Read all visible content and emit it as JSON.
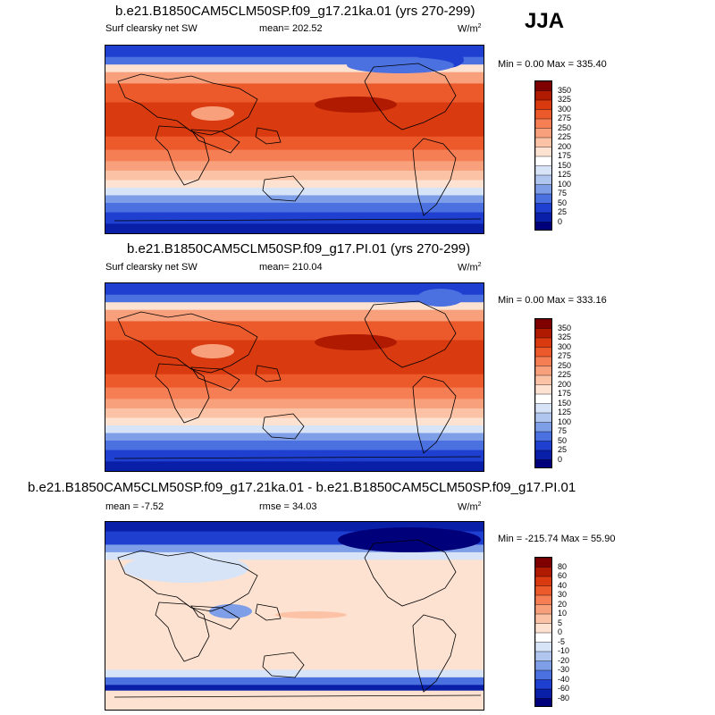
{
  "season": "JJA",
  "units_main": "W/m",
  "units_sup": "2",
  "panels": [
    {
      "title": "b.e21.B1850CAM5CLM50SP.f09_g17.21ka.01 (yrs 270-299)",
      "left_label": "Surf clearsky net SW",
      "center_label": "mean= 202.52",
      "minmax": "Min =   0.00 Max = 335.40",
      "type": "absolute"
    },
    {
      "title": "b.e21.B1850CAM5CLM50SP.f09_g17.PI.01 (yrs 270-299)",
      "left_label": "Surf clearsky net SW",
      "center_label": "mean= 210.04",
      "minmax": "Min =   0.00 Max = 333.16",
      "type": "absolute"
    },
    {
      "title": "b.e21.B1850CAM5CLM50SP.f09_g17.21ka.01 - b.e21.B1850CAM5CLM50SP.f09_g17.PI.01",
      "left_label": "mean =  -7.52",
      "center_label": "rmse =  34.03",
      "minmax": "Min = -215.74 Max =  55.90",
      "type": "difference"
    }
  ],
  "colorbar_abs": {
    "labels": [
      "350",
      "325",
      "300",
      "275",
      "250",
      "225",
      "200",
      "175",
      "150",
      "125",
      "100",
      "75",
      "50",
      "25",
      "0"
    ],
    "colors": [
      "#7f0000",
      "#b01a00",
      "#d93a0f",
      "#ec5a2c",
      "#f57e54",
      "#f8a07c",
      "#fbc2a6",
      "#fde2d2",
      "#ffffff",
      "#d7e3f7",
      "#b0c6ef",
      "#7f9ee8",
      "#4b70e0",
      "#1f3fd0",
      "#0a1fa8",
      "#00007a"
    ]
  },
  "colorbar_diff": {
    "labels": [
      "80",
      "60",
      "40",
      "30",
      "20",
      "10",
      "5",
      "0",
      "-5",
      "-10",
      "-20",
      "-30",
      "-40",
      "-60",
      "-80"
    ],
    "colors": [
      "#7f0000",
      "#b01a00",
      "#d93a0f",
      "#ec5a2c",
      "#f57e54",
      "#f8a07c",
      "#fbc2a6",
      "#fde2d2",
      "#ffffff",
      "#d7e3f7",
      "#b0c6ef",
      "#7f9ee8",
      "#4b70e0",
      "#1f3fd0",
      "#0a1fa8",
      "#00007a"
    ]
  }
}
